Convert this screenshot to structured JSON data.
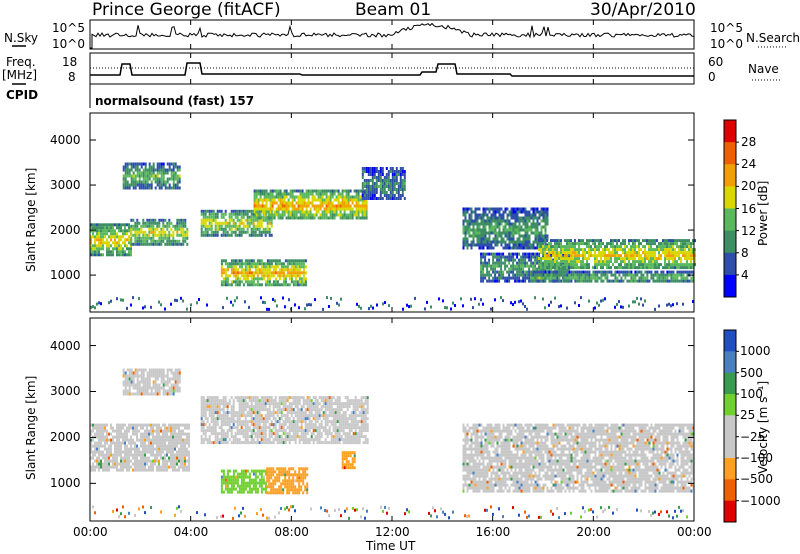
{
  "header": {
    "station": "Prince George (fitACF)",
    "beam": "Beam 01",
    "date": "30/Apr/2010"
  },
  "top_panels": {
    "nsky_label": "N.Sky",
    "nsky_ticks": [
      "10^5",
      "10^0"
    ],
    "nsearch_label": "N.Search",
    "nsearch_ticks": [
      "10^5",
      "10^0"
    ],
    "freq_label_line1": "Freq.",
    "freq_label_line2": "[MHz]",
    "freq_ticks": [
      "18",
      "8"
    ],
    "nave_label": "Nave",
    "nave_ticks": [
      "60",
      "0"
    ],
    "cpid_label": "CPID",
    "cpid_text": "normalsound (fast) 157"
  },
  "colors": {
    "power_scale": [
      "#0000ff",
      "#2e4fa8",
      "#3e8e63",
      "#5cb85c",
      "#d8d800",
      "#f0a000",
      "#f06000",
      "#e00000"
    ],
    "velocity_scale": [
      "#2050c0",
      "#4a80c0",
      "#3a9a50",
      "#70d030",
      "#c8c8c8",
      "#c8c8c8",
      "#ffa020",
      "#f06000",
      "#e00000"
    ]
  },
  "chart_data": [
    {
      "type": "heatmap",
      "title": "",
      "xlabel": "Time UT",
      "ylabel": "Slant Range [km]",
      "x_ticks": [
        "00:00",
        "04:00",
        "08:00",
        "12:00",
        "16:00",
        "20:00",
        "00:00"
      ],
      "y_ticks": [
        "1000",
        "2000",
        "3000",
        "4000"
      ],
      "xlim": [
        0,
        24
      ],
      "ylim": [
        180,
        4600
      ],
      "colorbar": {
        "label": "Power [dB]",
        "ticks": [
          "4",
          "8",
          "12",
          "16",
          "20",
          "24",
          "28"
        ],
        "range": [
          0,
          30
        ]
      },
      "features": [
        {
          "t0": 0.0,
          "t1": 1.6,
          "r0": 1450,
          "r1": 2150,
          "value": 20
        },
        {
          "t0": 1.6,
          "t1": 3.9,
          "r0": 1700,
          "r1": 2250,
          "value": 18
        },
        {
          "t0": 1.3,
          "t1": 3.6,
          "r0": 2950,
          "r1": 3500,
          "value": 14
        },
        {
          "t0": 4.4,
          "t1": 7.2,
          "r0": 1900,
          "r1": 2450,
          "value": 18
        },
        {
          "t0": 6.5,
          "t1": 11.0,
          "r0": 2250,
          "r1": 2900,
          "value": 22
        },
        {
          "t0": 5.2,
          "t1": 8.6,
          "r0": 800,
          "r1": 1350,
          "value": 22
        },
        {
          "t0": 10.8,
          "t1": 12.5,
          "r0": 2700,
          "r1": 3400,
          "value": 10
        },
        {
          "t0": 14.8,
          "t1": 18.2,
          "r0": 1600,
          "r1": 2500,
          "value": 12
        },
        {
          "t0": 15.5,
          "t1": 19.0,
          "r0": 900,
          "r1": 1500,
          "value": 12
        },
        {
          "t0": 17.8,
          "t1": 24.0,
          "r0": 1150,
          "r1": 1800,
          "value": 20
        },
        {
          "t0": 17.5,
          "t1": 24.0,
          "r0": 850,
          "r1": 1100,
          "value": 14
        }
      ]
    },
    {
      "type": "heatmap",
      "title": "",
      "xlabel": "Time UT",
      "ylabel": "Slant Range [km]",
      "x_ticks": [
        "00:00",
        "04:00",
        "08:00",
        "12:00",
        "16:00",
        "20:00",
        "00:00"
      ],
      "y_ticks": [
        "1000",
        "2000",
        "3000",
        "4000"
      ],
      "xlim": [
        0,
        24
      ],
      "ylim": [
        180,
        4600
      ],
      "colorbar": {
        "label": "Velocity [m s⁻¹]",
        "ticks": [
          "1000",
          "500",
          "100",
          "25",
          "−25",
          "−100",
          "−500",
          "−1000"
        ]
      },
      "features": [
        {
          "t0": 0.0,
          "t1": 3.9,
          "r0": 1300,
          "r1": 2300,
          "value": 0
        },
        {
          "t0": 1.3,
          "t1": 3.6,
          "r0": 2950,
          "r1": 3500,
          "value": 0
        },
        {
          "t0": 4.4,
          "t1": 11.0,
          "r0": 1900,
          "r1": 2900,
          "value": 0
        },
        {
          "t0": 5.2,
          "t1": 7.0,
          "r0": 800,
          "r1": 1300,
          "value": 60
        },
        {
          "t0": 7.0,
          "t1": 8.6,
          "r0": 800,
          "r1": 1350,
          "value": -300
        },
        {
          "t0": 10.0,
          "t1": 10.5,
          "r0": 1350,
          "r1": 1700,
          "value": -300
        },
        {
          "t0": 14.8,
          "t1": 24.0,
          "r0": 850,
          "r1": 2300,
          "value": 0
        }
      ]
    }
  ]
}
